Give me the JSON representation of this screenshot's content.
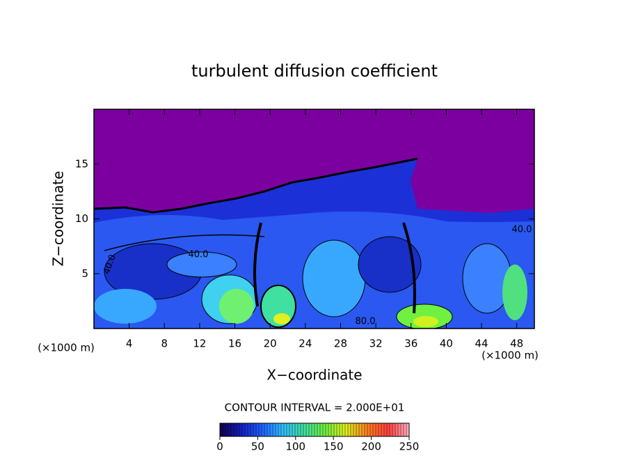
{
  "chart_data": {
    "type": "contour",
    "title": "turbulent diffusion coefficient",
    "x_label": "X−coordinate",
    "y_label": "Z−coordinate",
    "x_unit_label": "(×1000 m)",
    "y_unit_label": "(×1000 m)",
    "xlim": [
      0,
      50
    ],
    "ylim": [
      0,
      20
    ],
    "xticks": [
      4,
      8,
      12,
      16,
      20,
      24,
      28,
      32,
      36,
      40,
      44,
      48
    ],
    "yticks": [
      5,
      10,
      15
    ],
    "contour_labels": [
      "40.0",
      "40.0",
      "80.0",
      "40.0"
    ],
    "colorbar_title": "CONTOUR INTERVAL = 2.000E+01",
    "colorbar_lim": [
      0,
      250
    ],
    "colorbar_ticks": [
      0,
      50,
      100,
      150,
      200,
      250
    ],
    "colormap": [
      "#10004a",
      "#1020c0",
      "#2060ff",
      "#30c0ff",
      "#40e0a0",
      "#70f040",
      "#e0f020",
      "#ff8020",
      "#ff4040",
      "#ffb0c0"
    ]
  }
}
